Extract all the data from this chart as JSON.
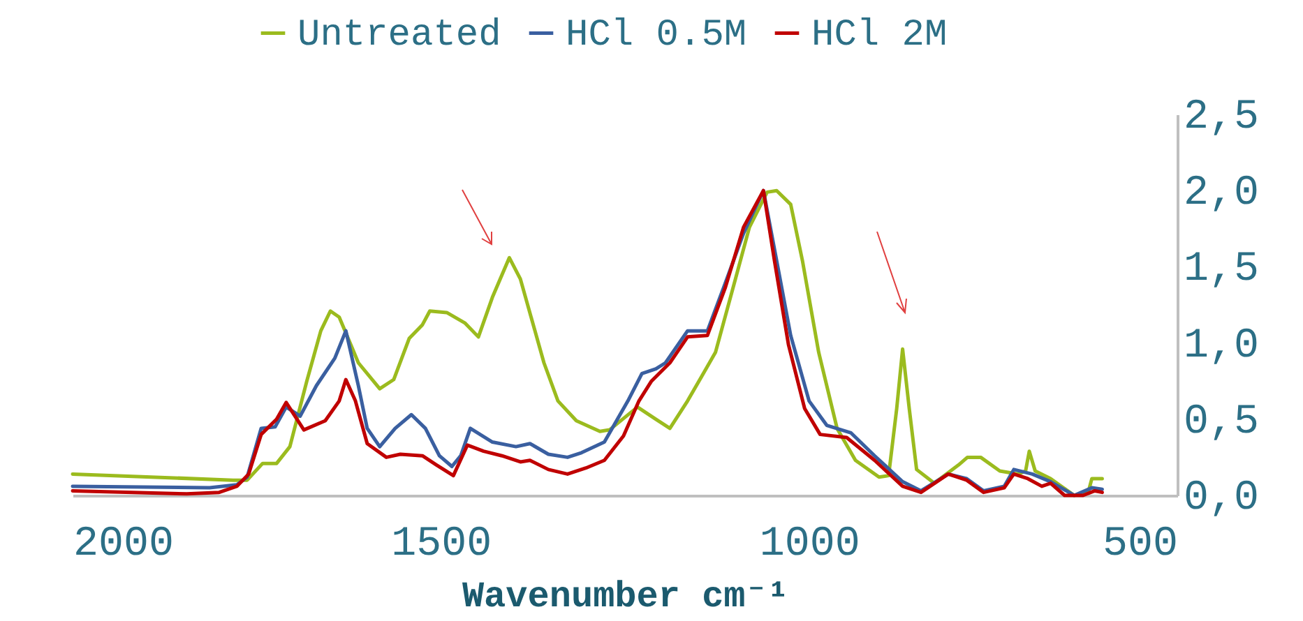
{
  "chart_data": {
    "type": "line",
    "xlabel": "Wavenumber cm⁻¹",
    "xlim": [
      2000,
      500
    ],
    "xticks": [
      2000,
      1500,
      1000,
      500
    ],
    "ylim": [
      0,
      2.5
    ],
    "yticks": [
      {
        "value": 0,
        "label": "0,0"
      },
      {
        "value": 0.5,
        "label": "0,5"
      },
      {
        "value": 1,
        "label": "1,0"
      },
      {
        "value": 1.5,
        "label": "1,5"
      },
      {
        "value": 2,
        "label": "2,0"
      },
      {
        "value": 2.5,
        "label": "2,5"
      }
    ],
    "grid": false,
    "legend": "top",
    "marker": "none",
    "line_style": "solid",
    "series": [
      {
        "name": "Untreated",
        "color": "#9bbb1e",
        "x": [
          2000,
          1782,
          1763,
          1742,
          1723,
          1705,
          1682,
          1663,
          1650,
          1638,
          1612,
          1583,
          1564,
          1543,
          1525,
          1515,
          1492,
          1467,
          1449,
          1430,
          1407,
          1392,
          1360,
          1341,
          1316,
          1284,
          1271,
          1233,
          1208,
          1189,
          1165,
          1146,
          1127,
          1100,
          1081,
          1057,
          1044,
          1025,
          1009,
          987,
          962,
          937,
          905,
          892,
          881,
          873,
          864,
          854,
          830,
          797,
          785,
          767,
          741,
          716,
          706,
          701,
          693,
          672,
          640,
          621,
          616,
          602
        ],
        "values": [
          0.14,
          0.1,
          0.1,
          0.21,
          0.21,
          0.32,
          0.75,
          1.08,
          1.21,
          1.17,
          0.87,
          0.7,
          0.76,
          1.03,
          1.12,
          1.21,
          1.2,
          1.13,
          1.04,
          1.3,
          1.56,
          1.42,
          0.87,
          0.62,
          0.49,
          0.42,
          0.43,
          0.58,
          0.5,
          0.44,
          0.62,
          0.78,
          0.94,
          1.42,
          1.76,
          1.99,
          2.0,
          1.91,
          1.54,
          0.94,
          0.44,
          0.23,
          0.12,
          0.13,
          0.57,
          0.96,
          0.57,
          0.17,
          0.08,
          0.2,
          0.25,
          0.25,
          0.16,
          0.14,
          0.16,
          0.29,
          0.16,
          0.11,
          0.0,
          0.02,
          0.11,
          0.11
        ]
      },
      {
        "name": "HCl 0.5M",
        "color": "#3a5fa0",
        "x": [
          2000,
          1814,
          1777,
          1763,
          1744,
          1725,
          1710,
          1691,
          1669,
          1644,
          1629,
          1612,
          1600,
          1583,
          1562,
          1540,
          1521,
          1502,
          1485,
          1473,
          1460,
          1430,
          1398,
          1379,
          1354,
          1328,
          1309,
          1278,
          1246,
          1227,
          1208,
          1195,
          1165,
          1138,
          1114,
          1089,
          1062,
          1044,
          1025,
          1000,
          976,
          943,
          911,
          873,
          848,
          811,
          786,
          763,
          735,
          722,
          697,
          672,
          640,
          616,
          602
        ],
        "values": [
          0.06,
          0.05,
          0.07,
          0.12,
          0.44,
          0.45,
          0.58,
          0.52,
          0.72,
          0.9,
          1.08,
          0.72,
          0.44,
          0.32,
          0.44,
          0.53,
          0.44,
          0.26,
          0.19,
          0.26,
          0.44,
          0.35,
          0.32,
          0.34,
          0.27,
          0.25,
          0.28,
          0.35,
          0.62,
          0.8,
          0.83,
          0.87,
          1.08,
          1.08,
          1.39,
          1.72,
          2.0,
          1.54,
          1.05,
          0.62,
          0.46,
          0.41,
          0.26,
          0.09,
          0.03,
          0.14,
          0.11,
          0.03,
          0.06,
          0.17,
          0.14,
          0.09,
          0.0,
          0.05,
          0.04
        ]
      },
      {
        "name": "HCl 2M",
        "color": "#c00000",
        "x": [
          2000,
          1845,
          1801,
          1777,
          1761,
          1744,
          1723,
          1710,
          1686,
          1657,
          1638,
          1629,
          1616,
          1600,
          1574,
          1555,
          1525,
          1506,
          1483,
          1464,
          1442,
          1417,
          1392,
          1379,
          1354,
          1328,
          1303,
          1278,
          1252,
          1231,
          1214,
          1189,
          1165,
          1138,
          1114,
          1089,
          1062,
          1047,
          1028,
          1006,
          985,
          949,
          911,
          873,
          848,
          811,
          786,
          763,
          735,
          722,
          703,
          684,
          672,
          653,
          628,
          612,
          602
        ],
        "values": [
          0.03,
          0.01,
          0.02,
          0.06,
          0.14,
          0.4,
          0.5,
          0.61,
          0.43,
          0.49,
          0.62,
          0.76,
          0.62,
          0.34,
          0.25,
          0.27,
          0.26,
          0.2,
          0.13,
          0.33,
          0.29,
          0.26,
          0.22,
          0.23,
          0.17,
          0.14,
          0.18,
          0.23,
          0.39,
          0.62,
          0.75,
          0.87,
          1.04,
          1.05,
          1.36,
          1.76,
          2.0,
          1.54,
          0.99,
          0.57,
          0.4,
          0.38,
          0.23,
          0.06,
          0.02,
          0.14,
          0.1,
          0.02,
          0.05,
          0.14,
          0.11,
          0.06,
          0.08,
          0.0,
          0.0,
          0.03,
          0.02
        ]
      }
    ]
  }
}
